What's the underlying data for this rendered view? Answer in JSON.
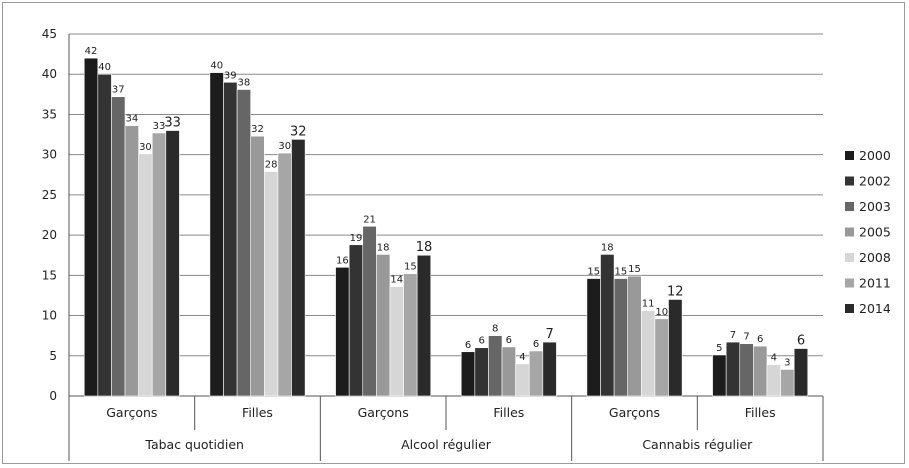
{
  "chart_data": {
    "type": "bar",
    "title": "",
    "xlabel": "",
    "ylabel": "",
    "ylim": [
      0,
      45
    ],
    "yticks": [
      0,
      5,
      10,
      15,
      20,
      25,
      30,
      35,
      40,
      45
    ],
    "grid": true,
    "legend_position": "right",
    "groups": [
      {
        "label": "Tabac quotidien",
        "categories": [
          "Garçons",
          "Filles"
        ]
      },
      {
        "label": "Alcool régulier",
        "categories": [
          "Garçons",
          "Filles"
        ]
      },
      {
        "label": "Cannabis régulier",
        "categories": [
          "Garçons",
          "Filles"
        ]
      }
    ],
    "categories": [
      "Garçons",
      "Filles",
      "Garçons",
      "Filles",
      "Garçons",
      "Filles"
    ],
    "series": [
      {
        "name": "2000",
        "color": "#1c1c1c",
        "values": [
          42,
          40.2,
          16,
          5.5,
          14.6,
          5.1
        ],
        "labels": [
          "42",
          "40",
          "16",
          "6",
          "15",
          "5"
        ]
      },
      {
        "name": "2002",
        "color": "#333333",
        "values": [
          40,
          39,
          18.8,
          6,
          17.6,
          6.7
        ],
        "labels": [
          "40",
          "39",
          "19",
          "6",
          "18",
          "7"
        ]
      },
      {
        "name": "2003",
        "color": "#666666",
        "values": [
          37.2,
          38.1,
          21.1,
          7.5,
          14.6,
          6.5
        ],
        "labels": [
          "37",
          "38",
          "21",
          "8",
          "15",
          "7"
        ]
      },
      {
        "name": "2005",
        "color": "#999999",
        "values": [
          33.6,
          32.3,
          17.6,
          6.1,
          14.9,
          6.2
        ],
        "labels": [
          "34",
          "32",
          "18",
          "6",
          "15",
          "6"
        ]
      },
      {
        "name": "2008",
        "color": "#d6d6d6",
        "values": [
          30.1,
          27.9,
          13.6,
          4,
          10.6,
          3.9
        ],
        "labels": [
          "30",
          "28",
          "14",
          "4",
          "11",
          "4"
        ]
      },
      {
        "name": "2011",
        "color": "#a6a6a6",
        "values": [
          32.7,
          30.2,
          15.2,
          5.6,
          9.6,
          3.3
        ],
        "labels": [
          "33",
          "30",
          "15",
          "6",
          "10",
          "3"
        ]
      },
      {
        "name": "2014",
        "color": "#2a2a2a",
        "values": [
          33,
          31.9,
          17.5,
          6.7,
          12,
          5.9
        ],
        "labels": [
          "33",
          "32",
          "18",
          "7",
          "12",
          "6"
        ]
      }
    ]
  }
}
